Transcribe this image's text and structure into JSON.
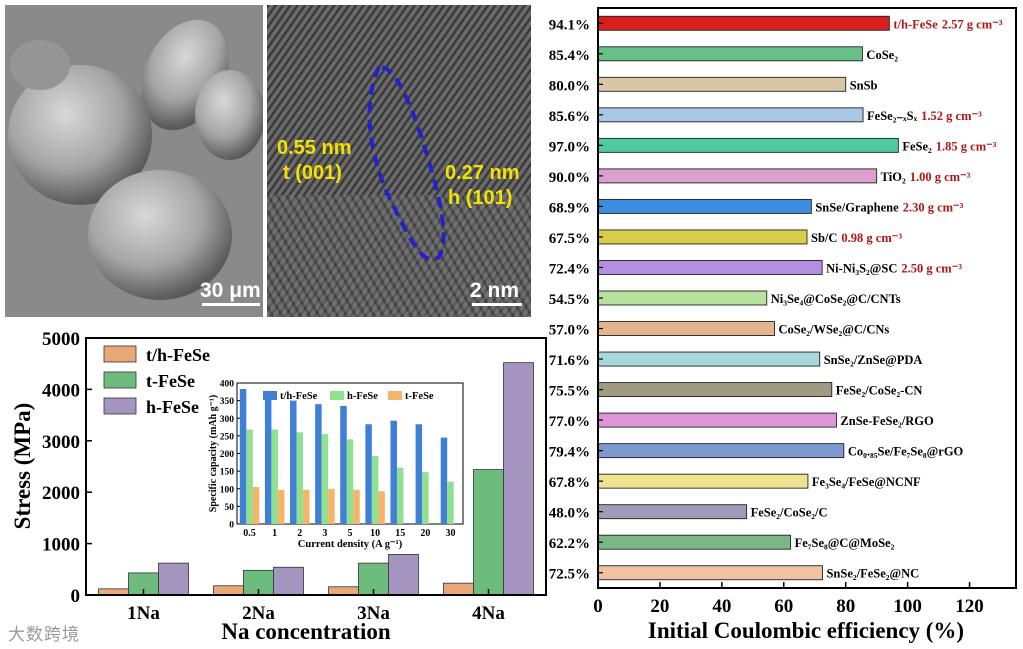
{
  "images": {
    "sem_scale": "30 μm",
    "tem_spacing_a": "0.55 nm",
    "tem_plane_a": "t (001)",
    "tem_spacing_b": "0.27 nm",
    "tem_plane_b": "h (101)",
    "tem_scale": "2 nm"
  },
  "watermark": "大数跨境",
  "colors": {
    "t_h": "#e8a878",
    "t": "#6dbb7d",
    "h": "#a494c0",
    "inset_th": "#3f7fd6",
    "inset_h": "#8fe08f",
    "inset_t": "#f6b46a"
  },
  "chart_data": [
    {
      "type": "bar",
      "title": "",
      "xlabel": "Na concentration",
      "ylabel": "Stress (MPa)",
      "ylim": [
        0,
        5000
      ],
      "yticks": [
        0,
        1000,
        2000,
        3000,
        4000,
        5000
      ],
      "categories": [
        "1Na",
        "2Na",
        "3Na",
        "4Na"
      ],
      "series": [
        {
          "name": "t/h-FeSe",
          "values": [
            120,
            180,
            160,
            230
          ]
        },
        {
          "name": "t-FeSe",
          "values": [
            430,
            480,
            620,
            2440
          ]
        },
        {
          "name": "h-FeSe",
          "values": [
            620,
            540,
            790,
            4520
          ]
        }
      ],
      "legend_position": "top-left"
    },
    {
      "type": "bar",
      "title": "",
      "xlabel": "Current density (A g⁻¹)",
      "ylabel": "Specific capacity (mAh g⁻¹)",
      "ylim": [
        0,
        400
      ],
      "yticks": [
        0,
        50,
        100,
        150,
        200,
        250,
        300,
        350,
        400
      ],
      "categories": [
        "0.5",
        "1",
        "2",
        "3",
        "5",
        "10",
        "15",
        "20",
        "30"
      ],
      "series": [
        {
          "name": "t/h-FeSe",
          "values": [
            383,
            368,
            350,
            340,
            335,
            283,
            293,
            283,
            245
          ]
        },
        {
          "name": "h-FeSe",
          "values": [
            268,
            268,
            260,
            255,
            240,
            193,
            160,
            147,
            120
          ]
        },
        {
          "name": "t-FeSe",
          "values": [
            105,
            97,
            97,
            100,
            97,
            93,
            0,
            0,
            0
          ]
        }
      ],
      "legend_position": "top"
    },
    {
      "type": "bar",
      "orientation": "horizontal",
      "xlabel": "Initial Coulombic efficiency (%)",
      "xlim": [
        0,
        135
      ],
      "xticks": [
        0,
        20,
        40,
        60,
        80,
        100,
        120
      ],
      "bars": [
        {
          "material": "t/h-FeSe",
          "density": "2.57 g cm⁻³",
          "percent": "94.1%",
          "value": 94.1,
          "color": "#d81e1e"
        },
        {
          "material": "CoSe₂",
          "density": "",
          "percent": "85.4%",
          "value": 85.4,
          "color": "#66c087"
        },
        {
          "material": "SnSb",
          "density": "",
          "percent": "80.0%",
          "value": 80.0,
          "color": "#d9c6a5"
        },
        {
          "material": "FeSe₂₋ₓSₓ",
          "density": "1.52 g cm⁻³",
          "percent": "85.6%",
          "value": 85.6,
          "color": "#a8c8e4"
        },
        {
          "material": "FeSe₂",
          "density": "1.85 g cm⁻³",
          "percent": "97.0%",
          "value": 97.0,
          "color": "#4ec9a0"
        },
        {
          "material": "TiO₂",
          "density": "1.00 g cm⁻³",
          "percent": "90.0%",
          "value": 90.0,
          "color": "#dd9fd0"
        },
        {
          "material": "SnSe/Graphene",
          "density": "2.30 g cm⁻³",
          "percent": "68.9%",
          "value": 68.9,
          "color": "#3c8ce0"
        },
        {
          "material": "Sb/C",
          "density": "0.98 g cm⁻³",
          "percent": "67.5%",
          "value": 67.5,
          "color": "#d9cd4a"
        },
        {
          "material": "Ni-Ni₃S₂@SC",
          "density": "2.50 g cm⁻³",
          "percent": "72.4%",
          "value": 72.4,
          "color": "#b48ee0"
        },
        {
          "material": "Ni₃Se₄@CoSe₂@C/CNTs",
          "density": "",
          "percent": "54.5%",
          "value": 54.5,
          "color": "#b6e29d"
        },
        {
          "material": "CoSe₂/WSe₂@C/CNs",
          "density": "",
          "percent": "57.0%",
          "value": 57.0,
          "color": "#e4b48e"
        },
        {
          "material": "SnSe₂/ZnSe@PDA",
          "density": "",
          "percent": "71.6%",
          "value": 71.6,
          "color": "#a9d8dc"
        },
        {
          "material": "FeSe₂/CoSe₂-CN",
          "density": "",
          "percent": "75.5%",
          "value": 75.5,
          "color": "#9e9b82"
        },
        {
          "material": "ZnSe-FeSe₂/RGO",
          "density": "",
          "percent": "77.0%",
          "value": 77.0,
          "color": "#de96d8"
        },
        {
          "material": "Co₀.₈₅Se/Fe₇Se₈@rGO",
          "density": "",
          "percent": "79.4%",
          "value": 79.4,
          "color": "#7f98cf"
        },
        {
          "material": "Fe₃Se₄/FeSe@NCNF",
          "density": "",
          "percent": "67.8%",
          "value": 67.8,
          "color": "#ece28f"
        },
        {
          "material": "FeSe₂/CoSe₂/C",
          "density": "",
          "percent": "48.0%",
          "value": 48.0,
          "color": "#a39ab5"
        },
        {
          "material": "Fe₇Se₈@C@MoSe₂",
          "density": "",
          "percent": "62.2%",
          "value": 62.2,
          "color": "#7ab784"
        },
        {
          "material": "SnSe₂/FeSe₂@NC",
          "density": "",
          "percent": "72.5%",
          "value": 72.5,
          "color": "#eec2a2"
        }
      ]
    }
  ]
}
